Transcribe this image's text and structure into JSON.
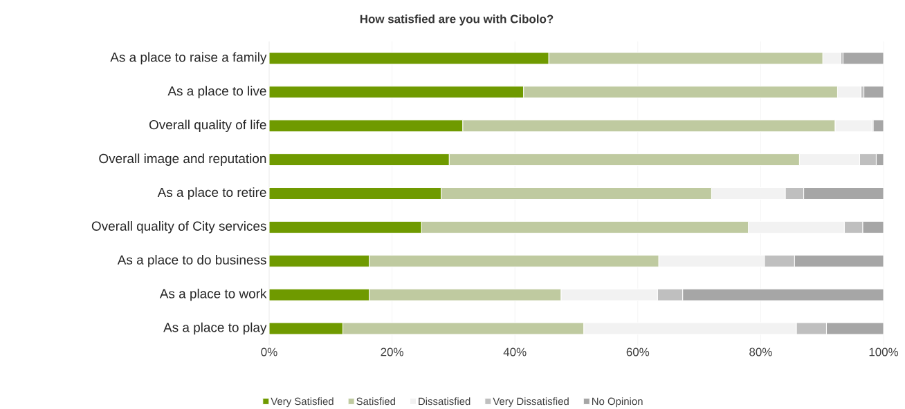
{
  "chart_data": {
    "type": "bar",
    "orientation": "horizontal",
    "stacked": true,
    "title": "How satisfied are you with Cibolo?",
    "categories": [
      "As a place to raise a family",
      "As a place to live",
      "Overall quality of life",
      "Overall image and reputation",
      "As a place to retire",
      "Overall quality of City services",
      "As a place to do business",
      "As a place to work",
      "As a place to play"
    ],
    "series": [
      {
        "name": "Very Satisfied",
        "color": "#6f9a00",
        "values": [
          45.5,
          41.4,
          31.5,
          29.3,
          28.0,
          24.8,
          16.3,
          16.3,
          12.0
        ]
      },
      {
        "name": "Satisfied",
        "color": "#bfcaa0",
        "values": [
          44.6,
          51.1,
          60.6,
          57.0,
          44.0,
          53.2,
          47.1,
          31.2,
          39.2
        ]
      },
      {
        "name": "Dissatisfied",
        "color": "#f2f2f2",
        "values": [
          2.9,
          3.8,
          6.0,
          9.8,
          12.0,
          15.6,
          17.2,
          15.7,
          34.6
        ]
      },
      {
        "name": "Very Dissatisfied",
        "color": "#bfbfbf",
        "values": [
          0.4,
          0.5,
          0.2,
          2.7,
          3.0,
          3.0,
          4.9,
          4.1,
          4.9
        ]
      },
      {
        "name": "No Opinion",
        "color": "#a6a6a6",
        "values": [
          6.6,
          3.2,
          1.7,
          1.2,
          13.0,
          3.4,
          14.5,
          32.7,
          9.3
        ]
      }
    ],
    "xlim": [
      0,
      100
    ],
    "xticks": [
      {
        "value": 0,
        "label": "0%"
      },
      {
        "value": 20,
        "label": "20%"
      },
      {
        "value": 40,
        "label": "40%"
      },
      {
        "value": 60,
        "label": "60%"
      },
      {
        "value": 80,
        "label": "80%"
      },
      {
        "value": 100,
        "label": "100%"
      }
    ],
    "grid": "x",
    "legend": "bottom"
  }
}
